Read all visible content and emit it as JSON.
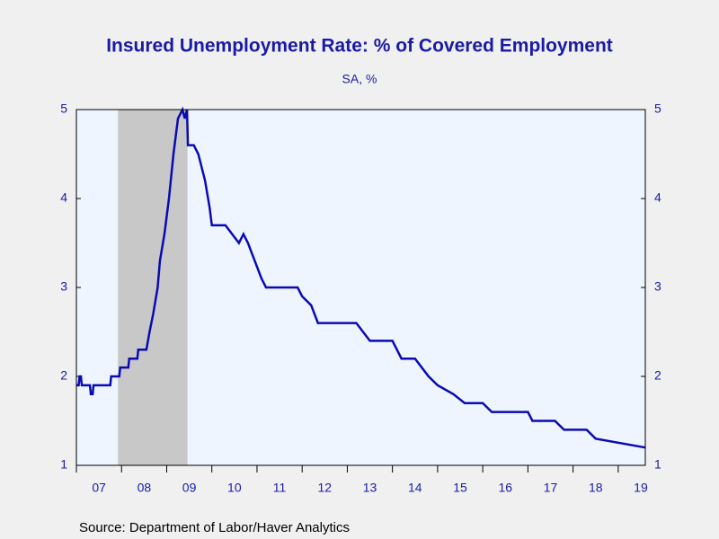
{
  "chart_data": {
    "type": "line",
    "title": "Insured Unemployment Rate: % of Covered Employment",
    "subtitle": "SA, %",
    "source": "Source:  Department of Labor/Haver Analytics",
    "color": "#0a0ab4",
    "recession": [
      2007.92,
      2009.46
    ],
    "x": [
      2007.0,
      2007.05,
      2007.07,
      2007.1,
      2007.12,
      2007.3,
      2007.32,
      2007.36,
      2007.38,
      2007.75,
      2007.77,
      2007.95,
      2007.97,
      2008.15,
      2008.17,
      2008.35,
      2008.37,
      2008.55,
      2008.62,
      2008.7,
      2008.8,
      2008.85,
      2008.95,
      2009.05,
      2009.15,
      2009.25,
      2009.35,
      2009.4,
      2009.45,
      2009.47,
      2009.6,
      2009.7,
      2009.85,
      2009.95,
      2010.0,
      2010.3,
      2010.45,
      2010.6,
      2010.7,
      2010.8,
      2010.95,
      2011.1,
      2011.2,
      2011.9,
      2012.0,
      2012.2,
      2012.35,
      2013.2,
      2013.35,
      2013.5,
      2014.0,
      2014.2,
      2014.5,
      2014.8,
      2015.0,
      2015.35,
      2015.6,
      2016.0,
      2016.2,
      2017.0,
      2017.1,
      2017.6,
      2017.8,
      2018.3,
      2018.5,
      2019.6
    ],
    "values": [
      1.9,
      1.9,
      2.0,
      2.0,
      1.9,
      1.9,
      1.8,
      1.8,
      1.9,
      1.9,
      2.0,
      2.0,
      2.1,
      2.1,
      2.2,
      2.2,
      2.3,
      2.3,
      2.5,
      2.7,
      3.0,
      3.3,
      3.6,
      4.0,
      4.5,
      4.9,
      5.0,
      4.9,
      5.0,
      4.6,
      4.6,
      4.5,
      4.2,
      3.9,
      3.7,
      3.7,
      3.6,
      3.5,
      3.6,
      3.5,
      3.3,
      3.1,
      3.0,
      3.0,
      2.9,
      2.8,
      2.6,
      2.6,
      2.5,
      2.4,
      2.4,
      2.2,
      2.2,
      2.0,
      1.9,
      1.8,
      1.7,
      1.7,
      1.6,
      1.6,
      1.5,
      1.5,
      1.4,
      1.4,
      1.3,
      1.2
    ],
    "xlim": [
      2007.0,
      2019.6
    ],
    "xticks": [
      {
        "value": 2007,
        "label": "07"
      },
      {
        "value": 2008,
        "label": "08"
      },
      {
        "value": 2009,
        "label": "09"
      },
      {
        "value": 2010,
        "label": "10"
      },
      {
        "value": 2011,
        "label": "11"
      },
      {
        "value": 2012,
        "label": "12"
      },
      {
        "value": 2013,
        "label": "13"
      },
      {
        "value": 2014,
        "label": "14"
      },
      {
        "value": 2015,
        "label": "15"
      },
      {
        "value": 2016,
        "label": "16"
      },
      {
        "value": 2017,
        "label": "17"
      },
      {
        "value": 2018,
        "label": "18"
      },
      {
        "value": 2019,
        "label": "19"
      }
    ],
    "ylim": [
      1,
      5
    ],
    "yticks": [
      1,
      2,
      3,
      4,
      5
    ]
  }
}
